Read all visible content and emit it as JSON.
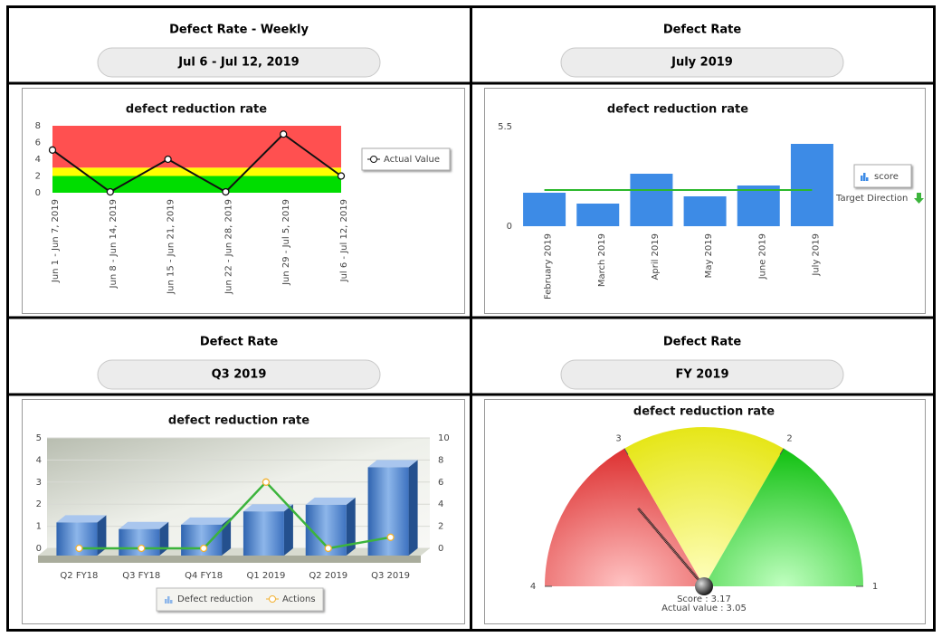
{
  "panels": [
    {
      "title": "Defect Rate - Weekly",
      "period": "Jul 6 - Jul 12, 2019"
    },
    {
      "title": "Defect Rate",
      "period": "July 2019"
    },
    {
      "title": "Defect Rate",
      "period": "Q3 2019"
    },
    {
      "title": "Defect Rate",
      "period": "FY 2019"
    }
  ],
  "chart_data": [
    {
      "type": "line",
      "title": "defect reduction rate",
      "categories": [
        "Jun 1 - Jun 7, 2019",
        "Jun 8 - Jun 14, 2019",
        "Jun 15 - Jun 21, 2019",
        "Jun 22 - Jun 28, 2019",
        "Jun 29 - Jul 5, 2019",
        "Jul 6 - Jul 12, 2019"
      ],
      "series": [
        {
          "name": "Actual Value",
          "color": "#111111",
          "values": [
            5.1,
            0.1,
            4,
            0.1,
            7,
            2
          ]
        }
      ],
      "bands": [
        {
          "from": 0,
          "to": 2,
          "color": "#00dd00"
        },
        {
          "from": 2,
          "to": 3,
          "color": "#ffff00"
        },
        {
          "from": 3,
          "to": 8,
          "color": "#ff5050"
        }
      ],
      "ylim": [
        0,
        8
      ],
      "yticks": [
        0,
        2,
        4,
        6,
        8
      ]
    },
    {
      "type": "bar",
      "title": "defect reduction rate",
      "categories": [
        "February 2019",
        "March 2019",
        "April 2019",
        "May 2019",
        "June 2019",
        "July 2019"
      ],
      "series": [
        {
          "name": "score",
          "color": "#3d8be6",
          "values": [
            1.85,
            1.25,
            2.9,
            1.65,
            2.25,
            4.55
          ]
        }
      ],
      "target": 2,
      "target_label": "Target Direction",
      "target_color": "#2cb82c",
      "ylim": [
        0,
        5.5
      ],
      "yticks": [
        0,
        5.5
      ]
    },
    {
      "type": "combo",
      "title": "defect reduction rate",
      "categories": [
        "Q2 FY18",
        "Q3 FY18",
        "Q4 FY18",
        "Q1 2019",
        "Q2 2019",
        "Q3 2019"
      ],
      "series": [
        {
          "name": "Defect reduction",
          "color": "#4f86cc",
          "values": [
            1.5,
            1.2,
            1.4,
            2,
            2.3,
            4
          ]
        },
        {
          "name": "Actions",
          "color": "#f2b130",
          "line_color": "#3cb43c",
          "axis": "y2",
          "values": [
            0,
            0,
            0,
            6,
            0,
            1
          ]
        }
      ],
      "ylim": [
        0,
        5
      ],
      "yticks": [
        0,
        1,
        2,
        3,
        4,
        5
      ],
      "y2lim": [
        0,
        10
      ],
      "y2ticks": [
        0,
        2,
        4,
        6,
        8,
        10
      ],
      "grid": true
    },
    {
      "type": "gauge",
      "title": "defect reduction rate",
      "range": [
        4,
        1
      ],
      "ticks": [
        4,
        3,
        2,
        1
      ],
      "bands": [
        {
          "from": 4,
          "to": 3,
          "color": "red"
        },
        {
          "from": 3,
          "to": 2,
          "color": "yellow"
        },
        {
          "from": 2,
          "to": 1,
          "color": "green"
        }
      ],
      "score_label": "Score :",
      "value": 3.17,
      "actual_label": "Actual value :",
      "actual": 3.05
    }
  ]
}
